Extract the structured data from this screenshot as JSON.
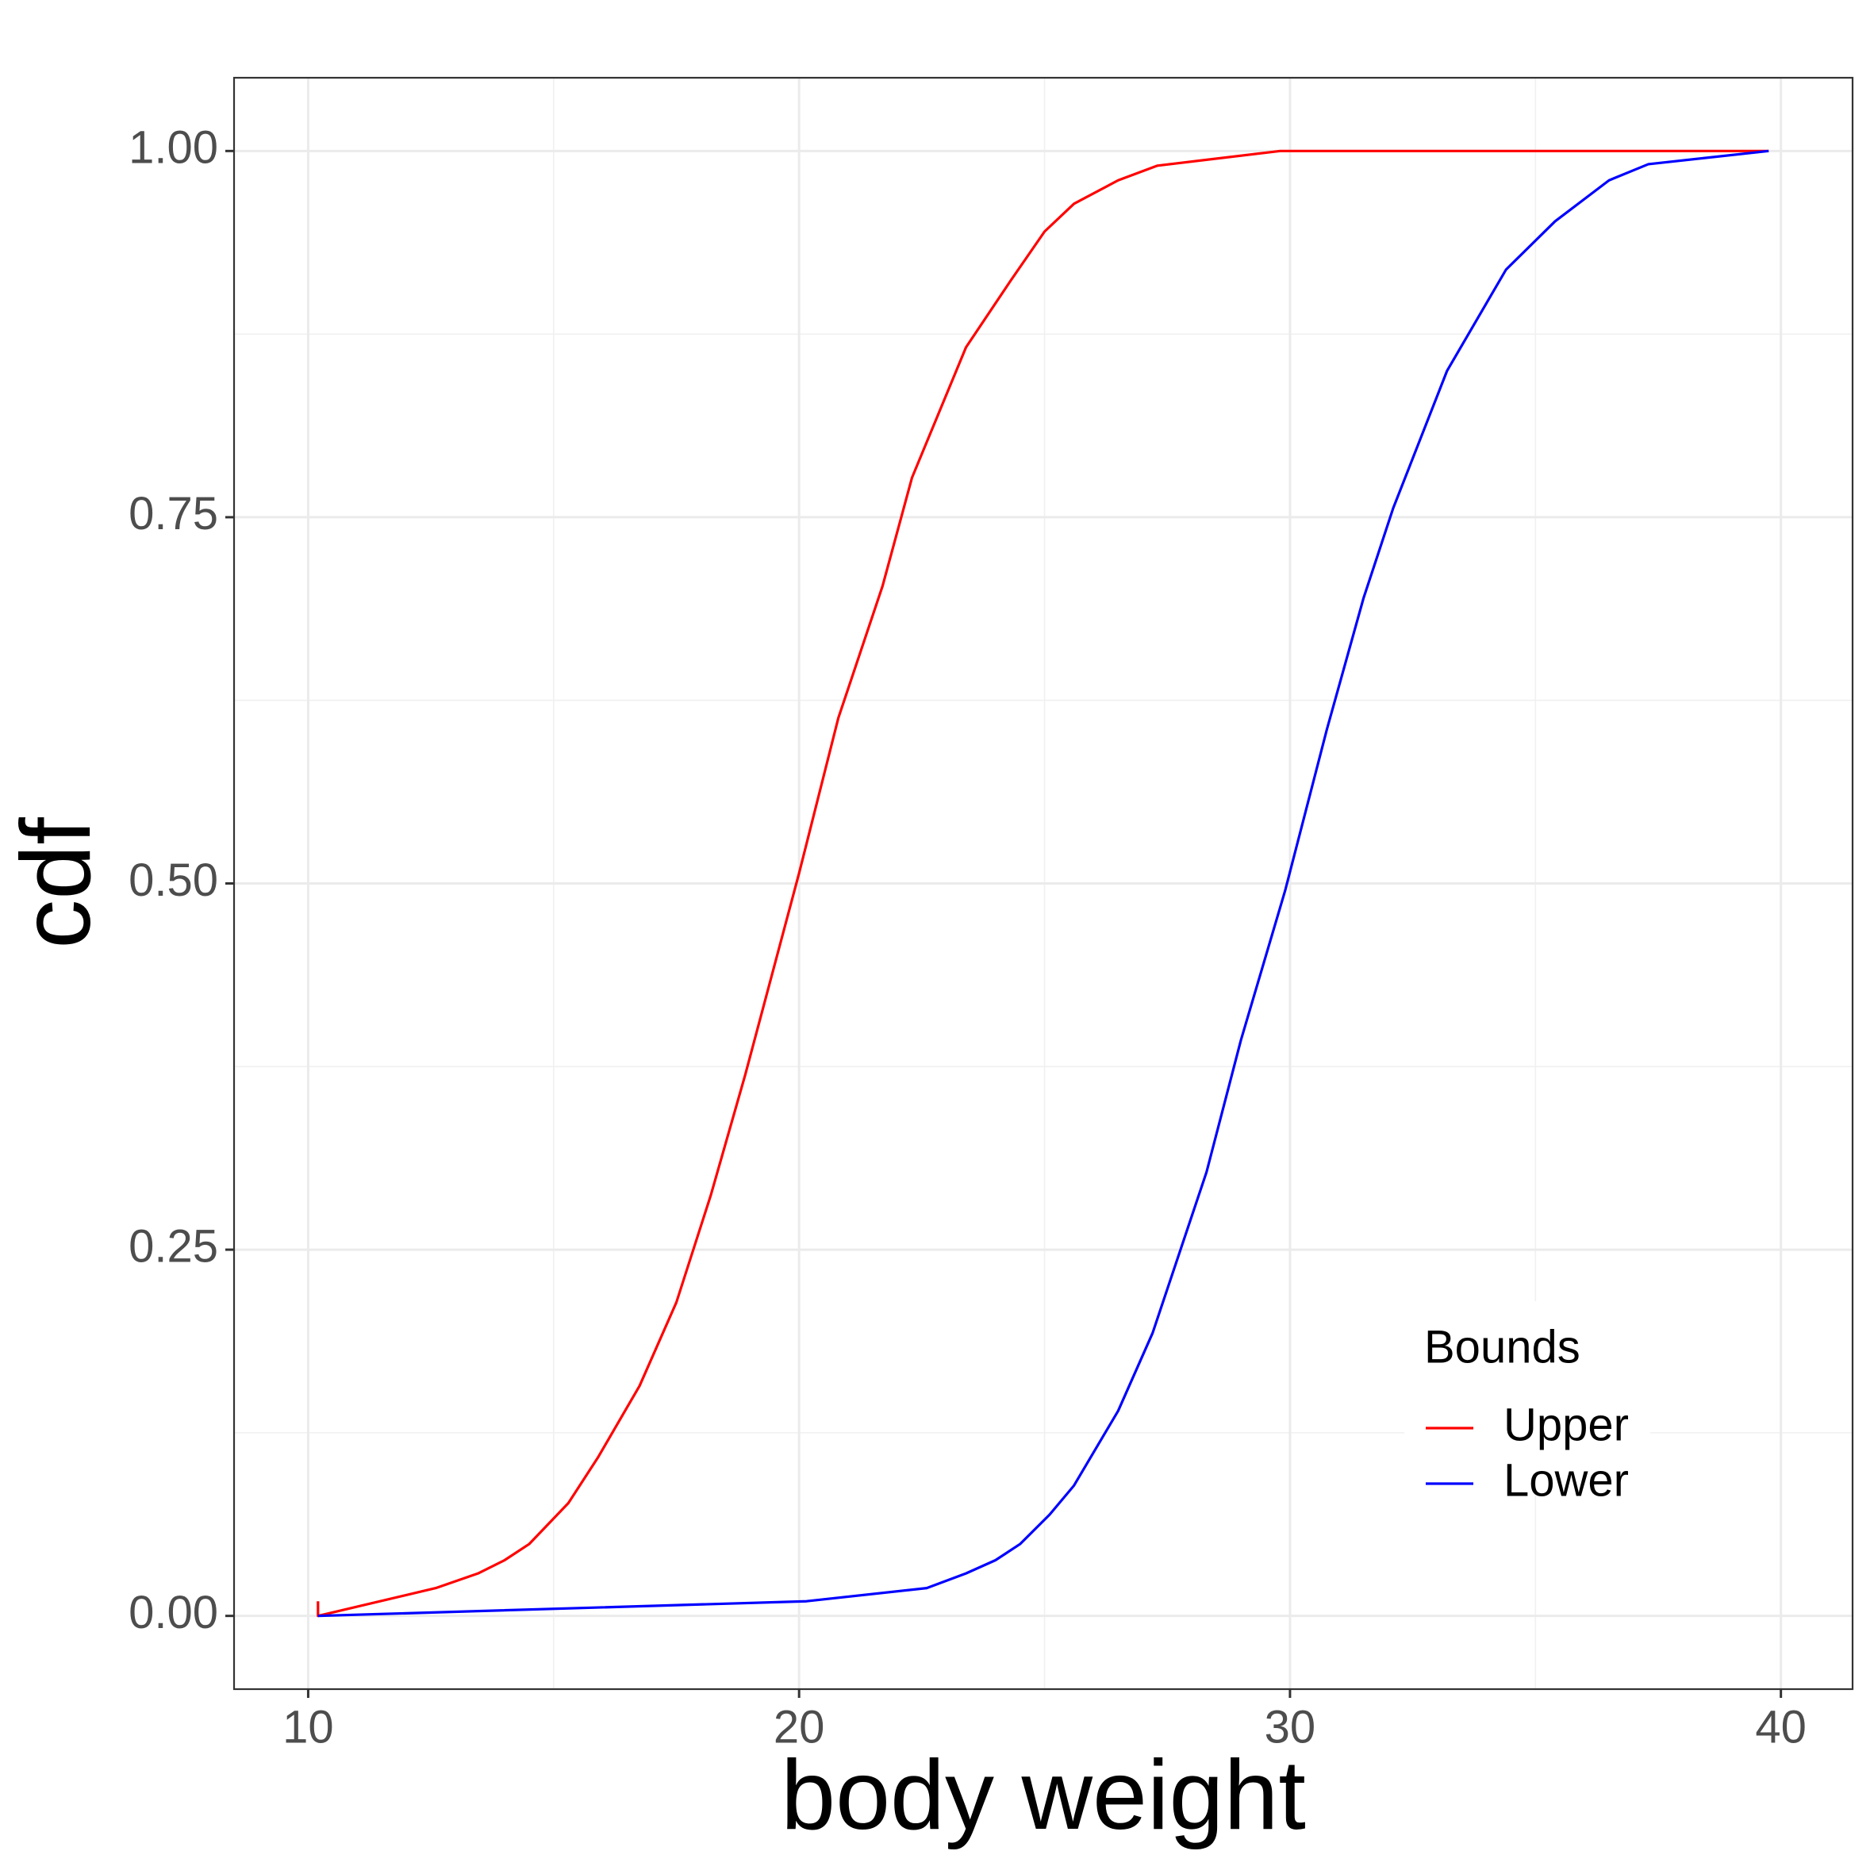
{
  "chart_data": {
    "type": "line",
    "x_label": "body weight",
    "y_label": "cdf",
    "xlim": [
      8.49,
      41.46
    ],
    "ylim": [
      -0.05,
      1.05
    ],
    "xticks": [
      10,
      20,
      30,
      40
    ],
    "yticks": [
      {
        "value": 0,
        "label": "0.00"
      },
      {
        "value": 0.25,
        "label": "0.25"
      },
      {
        "value": 0.5,
        "label": "0.50"
      },
      {
        "value": 0.75,
        "label": "0.75"
      },
      {
        "value": 1,
        "label": "1.00"
      }
    ],
    "grid": true,
    "legend": {
      "title": "Bounds",
      "position": "bottom-right"
    },
    "series": [
      {
        "name": "Upper",
        "color": "#ff0000",
        "x": [
          10.2,
          10.2,
          12.6,
          13.46,
          14.0,
          14.5,
          15.3,
          15.9,
          16.75,
          17.5,
          18.2,
          18.9,
          20.0,
          20.8,
          21.7,
          22.3,
          23.4,
          24.3,
          25.0,
          25.6,
          26.5,
          27.3,
          29.8,
          39.75
        ],
        "values": [
          0.01,
          0,
          0.019,
          0.029,
          0.038,
          0.049,
          0.077,
          0.108,
          0.157,
          0.214,
          0.287,
          0.369,
          0.507,
          0.613,
          0.703,
          0.777,
          0.866,
          0.911,
          0.945,
          0.964,
          0.98,
          0.99,
          1.0,
          1.0
        ]
      },
      {
        "name": "Lower",
        "color": "#0000ff",
        "x": [
          10.2,
          20.15,
          22.6,
          23.4,
          24.0,
          24.5,
          25.1,
          25.6,
          26.5,
          27.2,
          28.3,
          29.0,
          29.9,
          30.75,
          31.5,
          32.1,
          33.2,
          34.4,
          35.4,
          36.5,
          37.3,
          39.75
        ],
        "values": [
          0,
          0.01,
          0.019,
          0.029,
          0.038,
          0.049,
          0.069,
          0.089,
          0.14,
          0.193,
          0.303,
          0.393,
          0.495,
          0.605,
          0.695,
          0.756,
          0.85,
          0.919,
          0.952,
          0.98,
          0.991,
          1.0
        ]
      }
    ]
  }
}
